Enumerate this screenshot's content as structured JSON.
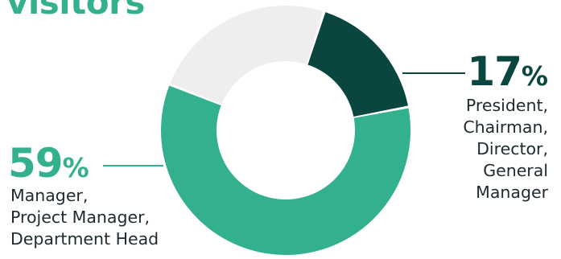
{
  "heading": "visitors",
  "colors": {
    "accent_green": "#33b18f",
    "dark_green": "#0a4540",
    "remainder_gray": "#eeeeee",
    "text": "#1f2a2e"
  },
  "chart_data": {
    "type": "pie",
    "variant": "donut",
    "title": "",
    "slices": [
      {
        "label_lines": [
          "President,",
          "Chairman,",
          "Director,",
          "General",
          "Manager"
        ],
        "value": 17,
        "display": "17",
        "color": "#0a4540"
      },
      {
        "label_lines": [
          "Manager,",
          "Project Manager,",
          "Department Head"
        ],
        "value": 59,
        "display": "59",
        "color": "#33b18f"
      },
      {
        "label_lines": [],
        "value": 24,
        "display": "",
        "color": "#eeeeee"
      }
    ],
    "percent_sign": "%",
    "legend": "none"
  }
}
